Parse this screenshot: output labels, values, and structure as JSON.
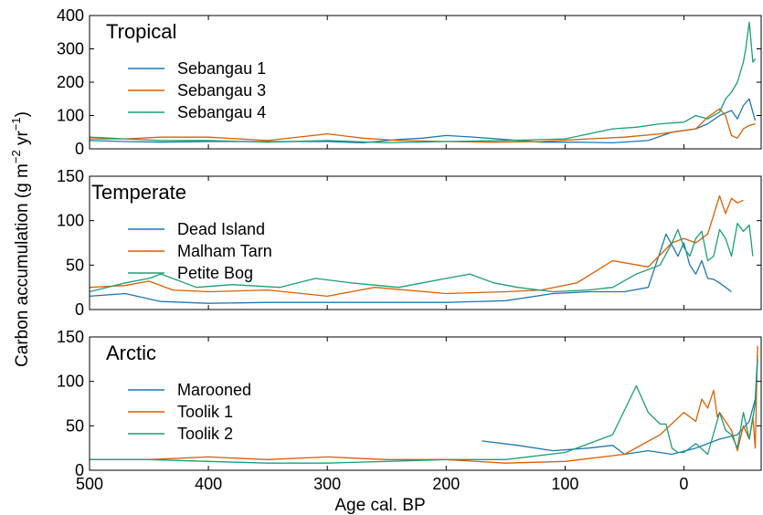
{
  "figure": {
    "ylabel": "Carbon accumulation (g m−2 yr−1)",
    "ylabel_parts": [
      "Carbon accumulation (g m",
      "−2",
      " yr",
      "−1",
      ")"
    ],
    "xlabel": "Age cal. BP"
  },
  "chart_data": [
    {
      "type": "line",
      "title": "Tropical",
      "xlabel": "Age cal. BP",
      "ylabel": "Carbon accumulation (g m−2 yr−1)",
      "xlim": [
        500,
        -65
      ],
      "ylim": [
        0,
        400
      ],
      "xticks": [
        500,
        400,
        300,
        200,
        100,
        0
      ],
      "yticks": [
        0,
        100,
        200,
        300,
        400
      ],
      "grid": false,
      "legend_position": "upper-left",
      "colors": [
        "#1f77b4",
        "#d95f02",
        "#1b9e77"
      ],
      "series": [
        {
          "name": "Sebangau 1",
          "color": "#1f77b4",
          "x": [
            500,
            470,
            440,
            400,
            350,
            300,
            270,
            240,
            220,
            200,
            180,
            150,
            120,
            90,
            60,
            30,
            10,
            -10,
            -20,
            -30,
            -40,
            -45,
            -50,
            -55,
            -58,
            -60
          ],
          "y": [
            25,
            22,
            20,
            22,
            22,
            22,
            18,
            28,
            32,
            40,
            36,
            28,
            20,
            20,
            18,
            25,
            50,
            60,
            75,
            100,
            115,
            90,
            130,
            150,
            110,
            85
          ]
        },
        {
          "name": "Sebangau 3",
          "color": "#d95f02",
          "x": [
            500,
            470,
            440,
            400,
            350,
            300,
            270,
            240,
            200,
            160,
            120,
            80,
            50,
            20,
            0,
            -10,
            -20,
            -30,
            -35,
            -40,
            -45,
            -50,
            -55,
            -60
          ],
          "y": [
            30,
            30,
            35,
            35,
            25,
            45,
            32,
            25,
            22,
            20,
            22,
            30,
            35,
            45,
            55,
            60,
            95,
            120,
            100,
            40,
            32,
            60,
            70,
            75
          ]
        },
        {
          "name": "Sebangau 4",
          "color": "#1b9e77",
          "x": [
            500,
            470,
            440,
            400,
            350,
            300,
            250,
            200,
            150,
            100,
            60,
            40,
            20,
            0,
            -10,
            -20,
            -30,
            -35,
            -40,
            -45,
            -50,
            -52,
            -55,
            -58,
            -60
          ],
          "y": [
            35,
            30,
            25,
            25,
            20,
            25,
            18,
            22,
            25,
            30,
            60,
            65,
            75,
            80,
            100,
            90,
            110,
            150,
            170,
            200,
            260,
            300,
            380,
            260,
            270
          ]
        }
      ]
    },
    {
      "type": "line",
      "title": "Temperate",
      "xlabel": "Age cal. BP",
      "ylabel": "Carbon accumulation (g m−2 yr−1)",
      "xlim": [
        500,
        -65
      ],
      "ylim": [
        0,
        150
      ],
      "xticks": [
        500,
        400,
        300,
        200,
        100,
        0
      ],
      "yticks": [
        0,
        50,
        100,
        150
      ],
      "grid": false,
      "legend_position": "upper-left",
      "colors": [
        "#1f77b4",
        "#d95f02",
        "#1b9e77"
      ],
      "series": [
        {
          "name": "Dead Island",
          "color": "#1f77b4",
          "x": [
            500,
            470,
            440,
            400,
            350,
            300,
            250,
            200,
            150,
            110,
            80,
            50,
            30,
            15,
            5,
            0,
            -5,
            -10,
            -15,
            -20,
            -25,
            -30,
            -40
          ],
          "y": [
            15,
            18,
            9,
            7,
            8,
            8,
            8,
            8,
            10,
            18,
            20,
            20,
            25,
            85,
            60,
            75,
            50,
            40,
            55,
            35,
            34,
            30,
            20
          ]
        },
        {
          "name": "Malham Tarn",
          "color": "#d95f02",
          "x": [
            500,
            470,
            450,
            430,
            400,
            350,
            300,
            260,
            200,
            150,
            120,
            90,
            60,
            30,
            10,
            0,
            -10,
            -20,
            -30,
            -35,
            -40,
            -45,
            -50
          ],
          "y": [
            25,
            27,
            32,
            22,
            20,
            22,
            15,
            25,
            18,
            20,
            22,
            30,
            55,
            48,
            75,
            80,
            75,
            85,
            128,
            108,
            125,
            120,
            123
          ]
        },
        {
          "name": "Petite Bog",
          "color": "#1b9e77",
          "x": [
            500,
            470,
            450,
            440,
            410,
            380,
            340,
            310,
            280,
            240,
            220,
            200,
            180,
            160,
            140,
            110,
            80,
            60,
            40,
            20,
            10,
            5,
            0,
            -5,
            -10,
            -15,
            -20,
            -25,
            -30,
            -35,
            -40,
            -45,
            -50,
            -55,
            -58
          ],
          "y": [
            20,
            30,
            35,
            40,
            25,
            28,
            25,
            35,
            30,
            25,
            30,
            35,
            40,
            30,
            25,
            20,
            22,
            25,
            40,
            50,
            75,
            90,
            70,
            60,
            80,
            88,
            55,
            60,
            90,
            80,
            60,
            97,
            88,
            95,
            60
          ]
        }
      ]
    },
    {
      "type": "line",
      "title": "Arctic",
      "xlabel": "Age cal. BP",
      "ylabel": "Carbon accumulation (g m−2 yr−1)",
      "xlim": [
        500,
        -65
      ],
      "ylim": [
        0,
        150
      ],
      "xticks": [
        500,
        400,
        300,
        200,
        100,
        0
      ],
      "xtick_labels": [
        "500",
        "400",
        "300",
        "200",
        "100",
        "0"
      ],
      "yticks": [
        0,
        50,
        100,
        150
      ],
      "grid": false,
      "legend_position": "upper-left",
      "colors": [
        "#1f77b4",
        "#d95f02",
        "#1b9e77"
      ],
      "series": [
        {
          "name": "Marooned",
          "color": "#1f77b4",
          "x": [
            170,
            140,
            110,
            80,
            60,
            50,
            30,
            10,
            -10,
            -30,
            -45,
            -55,
            -60,
            -62
          ],
          "y": [
            33,
            28,
            22,
            25,
            28,
            18,
            22,
            18,
            25,
            35,
            40,
            55,
            80,
            130
          ]
        },
        {
          "name": "Toolik 1",
          "color": "#d95f02",
          "x": [
            500,
            450,
            400,
            350,
            300,
            250,
            200,
            150,
            100,
            50,
            20,
            0,
            -10,
            -15,
            -20,
            -25,
            -28,
            -30,
            -35,
            -40,
            -45,
            -50,
            -55,
            -58,
            -60,
            -62
          ],
          "y": [
            12,
            12,
            15,
            12,
            15,
            12,
            12,
            8,
            10,
            18,
            40,
            65,
            55,
            80,
            70,
            90,
            60,
            65,
            55,
            45,
            22,
            50,
            35,
            60,
            25,
            140
          ]
        },
        {
          "name": "Toolik 2",
          "color": "#1b9e77",
          "x": [
            500,
            450,
            400,
            350,
            300,
            250,
            200,
            150,
            100,
            60,
            40,
            30,
            20,
            15,
            10,
            5,
            0,
            -10,
            -20,
            -30,
            -35,
            -40,
            -45,
            -50,
            -55,
            -60,
            -62
          ],
          "y": [
            12,
            12,
            10,
            8,
            8,
            10,
            12,
            12,
            20,
            40,
            95,
            65,
            52,
            52,
            25,
            20,
            20,
            30,
            18,
            65,
            45,
            40,
            25,
            65,
            35,
            75,
            125
          ]
        }
      ]
    }
  ]
}
